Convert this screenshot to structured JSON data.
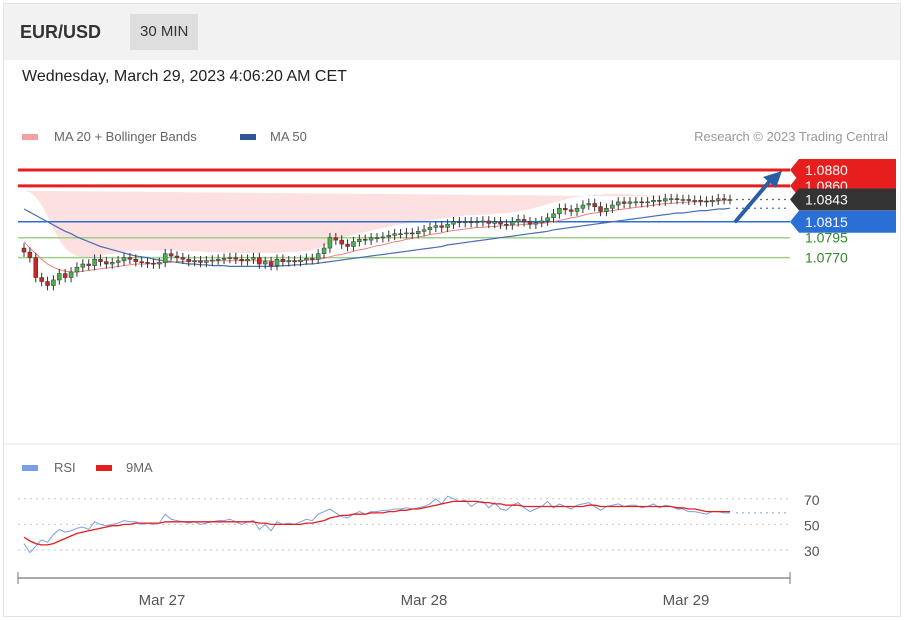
{
  "header": {
    "pair": "EUR/USD",
    "timeframe": "30 MIN"
  },
  "datetime": "Wednesday, March 29, 2023 4:06:20 AM CET",
  "legend": {
    "ma20": "MA 20 + Bollinger Bands",
    "ma50": "MA 50",
    "credit": "Research © 2023 Trading Central"
  },
  "rsi_legend": {
    "rsi": "RSI",
    "ma9": "9MA"
  },
  "colors": {
    "red": "#e61e1e",
    "blue": "#2a6fd6",
    "green": "#6ab04c",
    "dark": "#333333",
    "band": "#fde0e0",
    "ma50": "#4a6fb5",
    "ma20": "#f08080"
  },
  "chart_data": [
    {
      "type": "candlestick",
      "title": "",
      "ylim": [
        1.072,
        1.089
      ],
      "x_ticks": [
        "Mar 27",
        "Mar 28",
        "Mar 29"
      ],
      "levels": [
        {
          "value": 1.088,
          "label": "1.0880",
          "kind": "resistance",
          "color": "#e61e1e"
        },
        {
          "value": 1.086,
          "label": "1.0860",
          "kind": "resistance",
          "color": "#e61e1e"
        },
        {
          "value": 1.0843,
          "label": "1.0843",
          "kind": "last-price",
          "color": "#333333"
        },
        {
          "value": 1.0815,
          "label": "1.0815",
          "kind": "pivot",
          "color": "#2a6fd6"
        },
        {
          "value": 1.0795,
          "label": "1.0795",
          "kind": "support",
          "color": "#6ab04c"
        },
        {
          "value": 1.077,
          "label": "1.0770",
          "kind": "support",
          "color": "#6ab04c"
        }
      ],
      "close": [
        1.0777,
        1.077,
        1.0745,
        1.074,
        1.0735,
        1.0742,
        1.075,
        1.0745,
        1.0752,
        1.0758,
        1.0762,
        1.076,
        1.0768,
        1.0765,
        1.0762,
        1.0764,
        1.0766,
        1.077,
        1.0768,
        1.0765,
        1.0764,
        1.0763,
        1.0762,
        1.0764,
        1.0775,
        1.0772,
        1.077,
        1.0768,
        1.0765,
        1.0766,
        1.0764,
        1.0766,
        1.0767,
        1.0768,
        1.0769,
        1.077,
        1.0768,
        1.0766,
        1.0768,
        1.077,
        1.0762,
        1.0765,
        1.076,
        1.0768,
        1.0765,
        1.0766,
        1.0765,
        1.0767,
        1.0769,
        1.0768,
        1.0775,
        1.0782,
        1.0795,
        1.0792,
        1.0787,
        1.0784,
        1.079,
        1.0793,
        1.0792,
        1.0795,
        1.0795,
        1.0796,
        1.0798,
        1.08,
        1.08,
        1.0801,
        1.08,
        1.0803,
        1.0805,
        1.0808,
        1.081,
        1.0808,
        1.0812,
        1.0815,
        1.0814,
        1.0815,
        1.0814,
        1.0815,
        1.0816,
        1.0813,
        1.0815,
        1.0812,
        1.0811,
        1.0815,
        1.0818,
        1.0815,
        1.0812,
        1.0814,
        1.0816,
        1.082,
        1.0825,
        1.0832,
        1.083,
        1.0828,
        1.0832,
        1.0836,
        1.0838,
        1.0834,
        1.0828,
        1.0832,
        1.0836,
        1.084,
        1.0838,
        1.084,
        1.084,
        1.0839,
        1.084,
        1.0842,
        1.0841,
        1.0844,
        1.0844,
        1.0843,
        1.0843,
        1.0842,
        1.0842,
        1.0841,
        1.084,
        1.0842,
        1.0844,
        1.0843,
        1.0843
      ],
      "ma20": [
        1.079,
        1.0782,
        1.0775,
        1.0768,
        1.0762,
        1.0758,
        1.0755,
        1.0753,
        1.0752,
        1.0752,
        1.0753,
        1.0754,
        1.0755,
        1.0756,
        1.0757,
        1.0758,
        1.0759,
        1.076,
        1.0761,
        1.0762,
        1.0762,
        1.0762,
        1.0763,
        1.0763,
        1.0764,
        1.0764,
        1.0765,
        1.0765,
        1.0766,
        1.0766,
        1.0766,
        1.0766,
        1.0766,
        1.0766,
        1.0766,
        1.0766,
        1.0766,
        1.0766,
        1.0766,
        1.0766,
        1.0766,
        1.0766,
        1.0766,
        1.0765,
        1.0766,
        1.0766,
        1.0766,
        1.0766,
        1.0767,
        1.0767,
        1.0768,
        1.0769,
        1.0771,
        1.0773,
        1.0774,
        1.0776,
        1.0778,
        1.078,
        1.0781,
        1.0783,
        1.0785,
        1.0786,
        1.0788,
        1.079,
        1.0791,
        1.0793,
        1.0794,
        1.0796,
        1.0797,
        1.0799,
        1.08,
        1.0801,
        1.0803,
        1.0804,
        1.0805,
        1.0806,
        1.0807,
        1.0808,
        1.0808,
        1.0809,
        1.0809,
        1.081,
        1.081,
        1.0811,
        1.0811,
        1.0812,
        1.0812,
        1.0813,
        1.0813,
        1.0814,
        1.0815,
        1.0817,
        1.0818,
        1.082,
        1.0821,
        1.0823,
        1.0825,
        1.0826,
        1.0827,
        1.0828,
        1.0829,
        1.083,
        1.0831,
        1.0832,
        1.0833,
        1.0834,
        1.0835,
        1.0836,
        1.0837,
        1.0838,
        1.0838,
        1.0839,
        1.0839,
        1.084,
        1.084,
        1.084,
        1.0841,
        1.0841,
        1.0841,
        1.0842,
        1.0842
      ],
      "bb_upper": [
        1.0854,
        1.0852,
        1.0846,
        1.0836,
        1.0822,
        1.0806,
        1.0792,
        1.0782,
        1.0776,
        1.0772,
        1.077,
        1.077,
        1.0771,
        1.0772,
        1.0774,
        1.0775,
        1.0776,
        1.0777,
        1.0778,
        1.0779,
        1.0779,
        1.0779,
        1.0779,
        1.0779,
        1.0779,
        1.0779,
        1.0779,
        1.0778,
        1.0778,
        1.0778,
        1.0778,
        1.0777,
        1.0777,
        1.0777,
        1.0776,
        1.0776,
        1.0776,
        1.0776,
        1.0776,
        1.0776,
        1.0776,
        1.0776,
        1.0776,
        1.0776,
        1.0777,
        1.0777,
        1.0777,
        1.0778,
        1.0778,
        1.078,
        1.0782,
        1.0785,
        1.0789,
        1.0792,
        1.0795,
        1.0797,
        1.0799,
        1.0801,
        1.0802,
        1.0804,
        1.0806,
        1.0807,
        1.0809,
        1.081,
        1.0812,
        1.0813,
        1.0814,
        1.0815,
        1.0816,
        1.0817,
        1.0818,
        1.0819,
        1.082,
        1.0821,
        1.0822,
        1.0823,
        1.0823,
        1.0824,
        1.0824,
        1.0824,
        1.0825,
        1.0825,
        1.0826,
        1.0827,
        1.0828,
        1.0829,
        1.0831,
        1.0833,
        1.0835,
        1.0837,
        1.0839,
        1.0841,
        1.0843,
        1.0845,
        1.0846,
        1.0847,
        1.0848,
        1.0849,
        1.0849,
        1.085,
        1.085,
        1.085,
        1.085,
        1.085,
        1.0849,
        1.0849,
        1.0848,
        1.0848,
        1.0847,
        1.0847,
        1.0846,
        1.0846,
        1.0846,
        1.0846,
        1.0846,
        1.0846,
        1.0846,
        1.0846,
        1.0846
      ],
      "bb_lower": [
        1.0726,
        1.0712,
        1.0704,
        1.07,
        1.0702,
        1.071,
        1.0718,
        1.0724,
        1.0728,
        1.0732,
        1.0736,
        1.0738,
        1.0739,
        1.074,
        1.074,
        1.0741,
        1.0742,
        1.0743,
        1.0744,
        1.0745,
        1.0745,
        1.0745,
        1.0747,
        1.0747,
        1.0749,
        1.0749,
        1.0751,
        1.0752,
        1.0754,
        1.0754,
        1.0754,
        1.0755,
        1.0755,
        1.0755,
        1.0756,
        1.0756,
        1.0756,
        1.0756,
        1.0756,
        1.0756,
        1.0756,
        1.0756,
        1.0756,
        1.0754,
        1.0755,
        1.0755,
        1.0755,
        1.0754,
        1.0756,
        1.0754,
        1.0754,
        1.0753,
        1.0753,
        1.0754,
        1.0753,
        1.0755,
        1.0757,
        1.0759,
        1.076,
        1.0762,
        1.0764,
        1.0765,
        1.0767,
        1.077,
        1.077,
        1.0773,
        1.0774,
        1.0777,
        1.0778,
        1.0781,
        1.0782,
        1.0783,
        1.0786,
        1.0787,
        1.0788,
        1.0789,
        1.0791,
        1.0792,
        1.0792,
        1.0794,
        1.0793,
        1.0795,
        1.0794,
        1.0795,
        1.0794,
        1.0795,
        1.0793,
        1.0793,
        1.0791,
        1.0791,
        1.0791,
        1.0793,
        1.0793,
        1.0795,
        1.0796,
        1.0799,
        1.0802,
        1.0803,
        1.0805,
        1.0806,
        1.0808,
        1.081,
        1.0812,
        1.0814,
        1.0817,
        1.0819,
        1.0822,
        1.0824,
        1.0827,
        1.0829,
        1.083,
        1.0832,
        1.0832,
        1.0834,
        1.0834,
        1.0834,
        1.0836,
        1.0836,
        1.0836,
        1.0838,
        1.0838
      ],
      "ma50": [
        1.0831,
        1.0827,
        1.0823,
        1.0819,
        1.0815,
        1.0811,
        1.0807,
        1.0803,
        1.08,
        1.0796,
        1.0793,
        1.079,
        1.0787,
        1.0784,
        1.0782,
        1.078,
        1.0778,
        1.0776,
        1.0774,
        1.0772,
        1.0771,
        1.077,
        1.0768,
        1.0767,
        1.0766,
        1.0765,
        1.0764,
        1.0763,
        1.0762,
        1.0762,
        1.0761,
        1.0761,
        1.076,
        1.076,
        1.076,
        1.0759,
        1.0759,
        1.0759,
        1.0759,
        1.0759,
        1.0759,
        1.0759,
        1.0759,
        1.0759,
        1.076,
        1.076,
        1.0761,
        1.0761,
        1.0762,
        1.0762,
        1.0763,
        1.0764,
        1.0765,
        1.0766,
        1.0767,
        1.0768,
        1.0769,
        1.077,
        1.0771,
        1.0772,
        1.0773,
        1.0774,
        1.0775,
        1.0776,
        1.0777,
        1.0778,
        1.0779,
        1.078,
        1.0781,
        1.0782,
        1.0783,
        1.0784,
        1.0786,
        1.0787,
        1.0788,
        1.0789,
        1.079,
        1.0791,
        1.0792,
        1.0793,
        1.0794,
        1.0795,
        1.0796,
        1.0797,
        1.0798,
        1.0799,
        1.08,
        1.0801,
        1.0802,
        1.0803,
        1.0805,
        1.0806,
        1.0807,
        1.0808,
        1.0809,
        1.081,
        1.0811,
        1.0812,
        1.0813,
        1.0814,
        1.0815,
        1.0816,
        1.0817,
        1.0818,
        1.0819,
        1.082,
        1.0821,
        1.0822,
        1.0823,
        1.0824,
        1.0825,
        1.0826,
        1.0826,
        1.0827,
        1.0828,
        1.0829,
        1.0829,
        1.083,
        1.0831,
        1.0831,
        1.0832
      ]
    },
    {
      "type": "line",
      "title": "",
      "ylim": [
        20,
        80
      ],
      "y_ticks": [
        70,
        50,
        30
      ],
      "series": [
        {
          "name": "RSI",
          "values": [
            35,
            28,
            33,
            38,
            36,
            42,
            46,
            44,
            45,
            47,
            48,
            46,
            52,
            50,
            49,
            50,
            51,
            53,
            52,
            52,
            50,
            51,
            50,
            51,
            58,
            54,
            53,
            52,
            51,
            52,
            50,
            51,
            52,
            53,
            53,
            54,
            52,
            50,
            52,
            53,
            46,
            50,
            45,
            52,
            50,
            51,
            50,
            52,
            54,
            53,
            58,
            60,
            62,
            59,
            56,
            55,
            58,
            60,
            58,
            60,
            60,
            61,
            61,
            62,
            62,
            63,
            62,
            63,
            64,
            66,
            70,
            66,
            72,
            70,
            68,
            69,
            64,
            67,
            68,
            63,
            67,
            62,
            61,
            65,
            67,
            63,
            60,
            62,
            64,
            68,
            63,
            66,
            64,
            62,
            65,
            66,
            67,
            64,
            61,
            64,
            65,
            66,
            64,
            65,
            65,
            63,
            64,
            66,
            63,
            65,
            64,
            62,
            62,
            60,
            60,
            59,
            58,
            60,
            60,
            59,
            59
          ]
        },
        {
          "name": "9MA",
          "values": [
            40,
            37,
            35,
            34,
            34,
            35,
            37,
            39,
            41,
            43,
            44,
            45,
            46,
            47,
            48,
            49,
            49,
            50,
            50,
            51,
            51,
            51,
            51,
            51,
            52,
            52,
            52,
            52,
            52,
            52,
            52,
            52,
            52,
            52,
            52,
            52,
            52,
            52,
            52,
            52,
            51,
            51,
            50,
            50,
            50,
            50,
            50,
            50,
            51,
            51,
            52,
            53,
            55,
            56,
            57,
            57,
            58,
            58,
            58,
            59,
            59,
            59,
            60,
            60,
            61,
            61,
            62,
            62,
            63,
            64,
            65,
            66,
            67,
            68,
            68,
            68,
            68,
            68,
            67,
            67,
            66,
            66,
            65,
            65,
            65,
            64,
            64,
            64,
            64,
            64,
            64,
            64,
            64,
            64,
            64,
            64,
            65,
            65,
            64,
            64,
            64,
            64,
            64,
            64,
            64,
            64,
            64,
            64,
            64,
            64,
            64,
            63,
            63,
            62,
            62,
            61,
            60,
            60,
            60,
            60,
            60
          ]
        }
      ]
    }
  ]
}
